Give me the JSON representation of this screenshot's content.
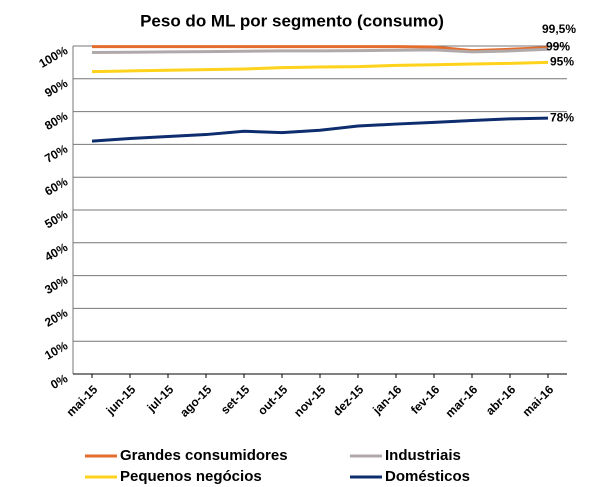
{
  "chart_data": {
    "type": "line",
    "title": "Peso do ML por segmento (consumo)",
    "categories": [
      "mai-15",
      "jun-15",
      "jul-15",
      "ago-15",
      "set-15",
      "out-15",
      "nov-15",
      "dez-15",
      "jan-16",
      "fev-16",
      "mar-16",
      "abr-16",
      "mai-16"
    ],
    "series": [
      {
        "name": "Grandes consumidores",
        "color": "#e46c2c",
        "values": [
          99.8,
          99.8,
          99.8,
          99.8,
          99.8,
          99.8,
          99.8,
          99.8,
          99.8,
          99.7,
          98.6,
          99.0,
          99.5
        ],
        "value_labels": [
          null,
          null,
          null,
          null,
          null,
          null,
          null,
          null,
          null,
          null,
          null,
          null,
          "99,5%"
        ]
      },
      {
        "name": "Industriais",
        "color": "#b0a9aa",
        "values": [
          98.0,
          98.1,
          98.2,
          98.3,
          98.4,
          98.5,
          98.5,
          98.6,
          98.7,
          98.8,
          98.2,
          98.5,
          99
        ],
        "value_labels": [
          null,
          null,
          null,
          null,
          null,
          null,
          null,
          null,
          null,
          null,
          null,
          null,
          "99%"
        ]
      },
      {
        "name": "Pequenos negócios",
        "color": "#ffd21c",
        "values": [
          92.2,
          92.4,
          92.6,
          92.8,
          93.0,
          93.4,
          93.6,
          93.7,
          94.1,
          94.3,
          94.5,
          94.7,
          95
        ],
        "value_labels": [
          null,
          null,
          null,
          null,
          null,
          null,
          null,
          null,
          null,
          null,
          null,
          null,
          "95%"
        ]
      },
      {
        "name": "Domésticos",
        "color": "#0e2d6e",
        "values": [
          71.0,
          71.8,
          72.4,
          73.0,
          74.0,
          73.6,
          74.3,
          75.6,
          76.2,
          76.7,
          77.3,
          77.8,
          78
        ],
        "value_labels": [
          null,
          null,
          null,
          null,
          null,
          null,
          null,
          null,
          null,
          null,
          null,
          null,
          "78%"
        ]
      }
    ],
    "ylim": [
      0,
      100
    ],
    "yticks": [
      {
        "value": 0,
        "label": "0%"
      },
      {
        "value": 10,
        "label": "10%"
      },
      {
        "value": 20,
        "label": "20%"
      },
      {
        "value": 30,
        "label": "30%"
      },
      {
        "value": 40,
        "label": "40%"
      },
      {
        "value": 50,
        "label": "50%"
      },
      {
        "value": 60,
        "label": "60%"
      },
      {
        "value": 70,
        "label": "70%"
      },
      {
        "value": 80,
        "label": "80%"
      },
      {
        "value": 90,
        "label": "90%"
      },
      {
        "value": 100,
        "label": "100%"
      }
    ],
    "grid": true,
    "legend": "bottom"
  }
}
